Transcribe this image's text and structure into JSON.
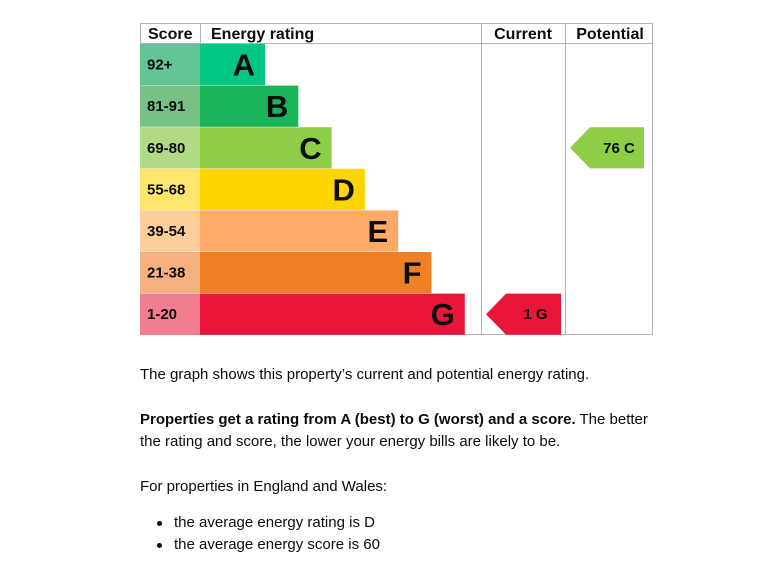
{
  "chart_data": {
    "type": "bar",
    "header": {
      "score": "Score",
      "rating": "Energy rating",
      "current": "Current",
      "potential": "Potential"
    },
    "bands": [
      {
        "score": "92+",
        "letter": "A",
        "rank": 1,
        "score_color": "#63c496",
        "bar_color": "#00c781",
        "letter_color": "#0b0c0c",
        "score_text_color": "#0b0c0c"
      },
      {
        "score": "81-91",
        "letter": "B",
        "rank": 2,
        "score_color": "#77c186",
        "bar_color": "#19b459",
        "letter_color": "#0b0c0c",
        "score_text_color": "#0b0c0c"
      },
      {
        "score": "69-80",
        "letter": "C",
        "rank": 3,
        "score_color": "#b1da84",
        "bar_color": "#8dce46",
        "letter_color": "#0b0c0c",
        "score_text_color": "#0b0c0c"
      },
      {
        "score": "55-68",
        "letter": "D",
        "rank": 4,
        "score_color": "#ffe46e",
        "bar_color": "#ffd500",
        "letter_color": "#0b0c0c",
        "score_text_color": "#0b0c0c"
      },
      {
        "score": "39-54",
        "letter": "E",
        "rank": 5,
        "score_color": "#fccd9a",
        "bar_color": "#fcaa65",
        "letter_color": "#0b0c0c",
        "score_text_color": "#0b0c0c"
      },
      {
        "score": "21-38",
        "letter": "F",
        "rank": 6,
        "score_color": "#f4b07d",
        "bar_color": "#ef8023",
        "letter_color": "#0b0c0c",
        "score_text_color": "#0b0c0c"
      },
      {
        "score": "1-20",
        "letter": "G",
        "rank": 7,
        "score_color": "#f27d8f",
        "bar_color": "#e9153b",
        "letter_color": "#0b0c0c",
        "score_text_color": "#0b0c0c"
      }
    ],
    "current": {
      "score": 1,
      "letter": "G",
      "label": "1 G",
      "band_index": 6,
      "color": "#e9153b",
      "text_color": "#0b0c0c"
    },
    "potential": {
      "score": 76,
      "letter": "C",
      "label": "76 C",
      "band_index": 2,
      "color": "#8dce46",
      "text_color": "#0b0c0c"
    }
  },
  "info": {
    "intro": "The graph shows this property’s current and potential energy rating.",
    "rating_bold": "Properties get a rating from A (best) to G (worst) and a score.",
    "rating_rest": " The better the rating and score, the lower your energy bills are likely to be.",
    "region": "For properties in England and Wales:",
    "bullets": [
      "the average energy rating is D",
      "the average energy score is 60"
    ]
  }
}
